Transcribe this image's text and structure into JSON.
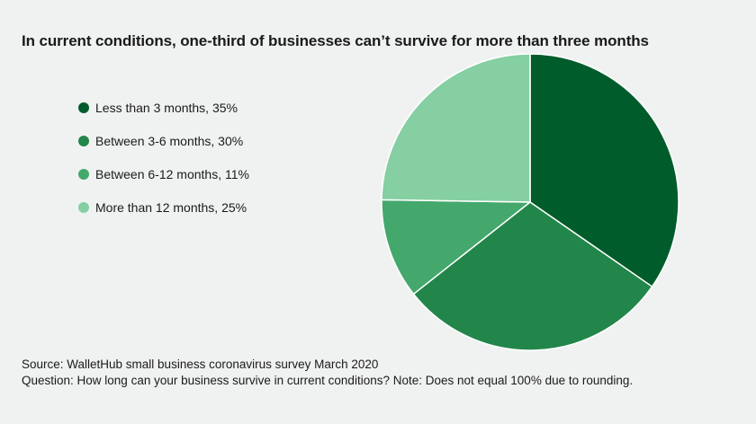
{
  "chart_data": {
    "type": "pie",
    "title": "In current conditions, one-third of businesses can’t survive for more than three months",
    "categories": [
      "Less than 3 months, 35%",
      "Between 3-6 months, 30%",
      "Between 6-12 months, 11%",
      "More than 12 months, 25%"
    ],
    "values": [
      35,
      30,
      11,
      25
    ],
    "colors": [
      "#005c2a",
      "#22864a",
      "#44a86c",
      "#85cfa2"
    ],
    "legend_position": "left"
  },
  "footer": {
    "source": "Source: WalletHub small business coronavirus survey March 2020",
    "question": "Question: How long can your business survive in current conditions? Note: Does not equal 100% due to rounding."
  }
}
